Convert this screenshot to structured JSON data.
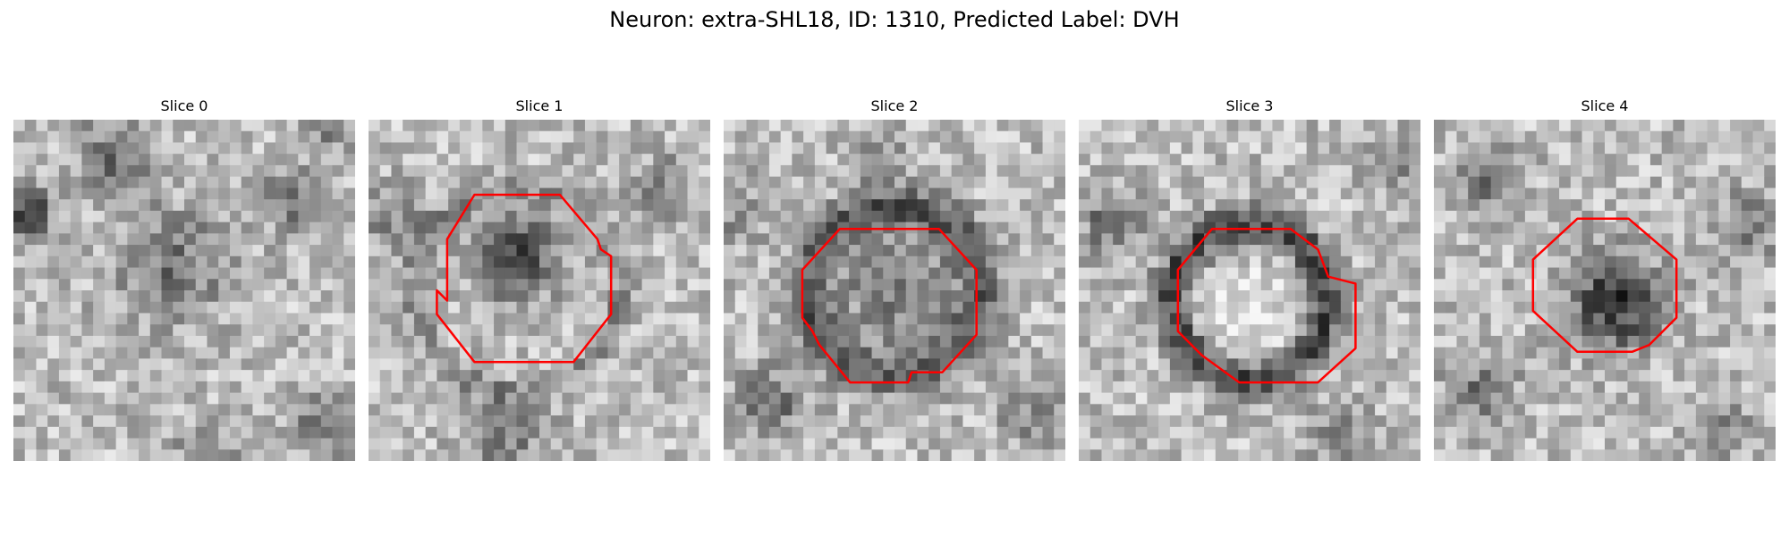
{
  "figure": {
    "title": "Neuron: extra-SHL18, ID: 1310, Predicted Label: DVH"
  },
  "panels": [
    {
      "title": "Slice 0",
      "has_outline": false,
      "texture": "light grayscale noise, dark blob top-left and left edge"
    },
    {
      "title": "Slice 1",
      "has_outline": true,
      "texture": "grayscale noise, dark nucleus near center-left"
    },
    {
      "title": "Slice 2",
      "has_outline": true,
      "texture": "grayscale noise, dark ring around medium-gray interior"
    },
    {
      "title": "Slice 3",
      "has_outline": true,
      "texture": "grayscale noise, dark ring around bright center"
    },
    {
      "title": "Slice 4",
      "has_outline": true,
      "texture": "grayscale noise, dark blob inside outline"
    }
  ],
  "colors": {
    "outline": "#ff0000",
    "image": "grayscale"
  }
}
